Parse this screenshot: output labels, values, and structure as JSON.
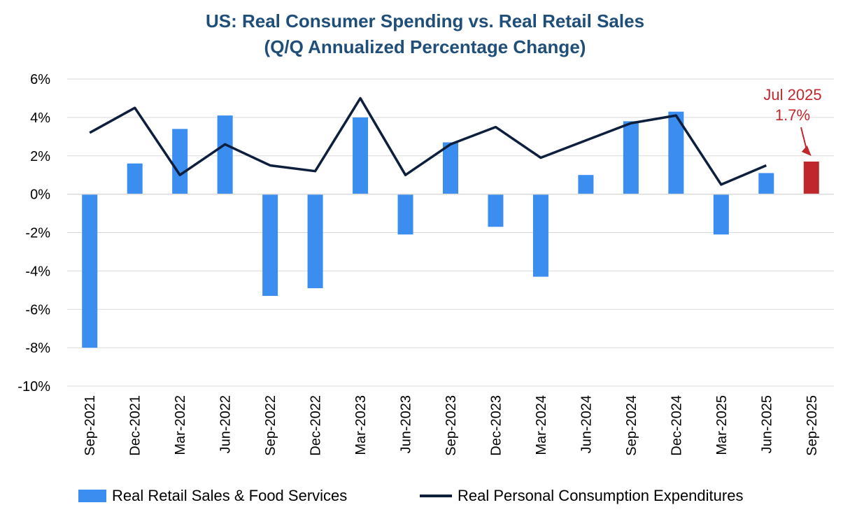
{
  "chart_data": {
    "type": "bar+line",
    "title": "US: Real Consumer Spending vs. Real Retail Sales",
    "subtitle": "(Q/Q Annualized Percentage Change)",
    "categories": [
      "Sep-2021",
      "Dec-2021",
      "Mar-2022",
      "Jun-2022",
      "Sep-2022",
      "Dec-2022",
      "Mar-2023",
      "Jun-2023",
      "Sep-2023",
      "Dec-2023",
      "Mar-2024",
      "Jun-2024",
      "Sep-2024",
      "Dec-2024",
      "Mar-2025",
      "Jun-2025",
      "Sep-2025"
    ],
    "ylim": [
      -10,
      6
    ],
    "yticks": [
      6,
      4,
      2,
      0,
      -2,
      -4,
      -6,
      -8,
      -10
    ],
    "ytick_labels": [
      "6%",
      "4%",
      "2%",
      "0%",
      "-2%",
      "-4%",
      "-6%",
      "-8%",
      "-10%"
    ],
    "series": [
      {
        "name": "Real Retail Sales & Food Services",
        "type": "bar",
        "color": "#3b8ef0",
        "values": [
          -8.0,
          1.6,
          3.4,
          4.1,
          -5.3,
          -4.9,
          4.0,
          -2.1,
          2.7,
          -1.7,
          -4.3,
          1.0,
          3.8,
          4.3,
          -2.1,
          1.1,
          1.7
        ],
        "highlight_index": 16,
        "highlight_color": "#c0272d"
      },
      {
        "name": "Real Personal Consumption Expenditures",
        "type": "line",
        "color": "#0d1f3c",
        "values": [
          3.2,
          4.5,
          1.0,
          2.6,
          1.5,
          1.2,
          5.0,
          1.0,
          2.6,
          3.5,
          1.9,
          2.8,
          3.7,
          4.1,
          0.5,
          1.5,
          null
        ]
      }
    ],
    "annotation": {
      "line1": "Jul 2025",
      "line2": "1.7%"
    },
    "legend_position": "bottom"
  }
}
